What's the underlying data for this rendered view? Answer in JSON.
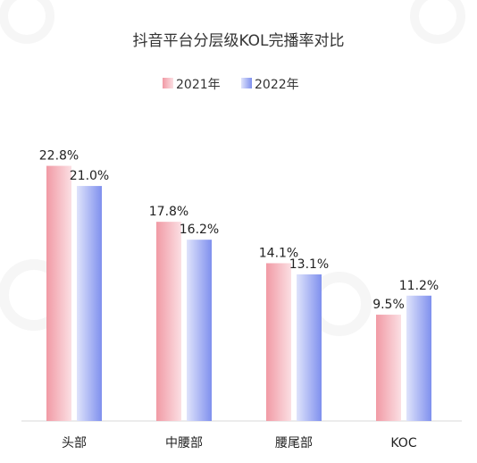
{
  "chart_data": {
    "type": "bar",
    "title": "抖音平台分层级KOL完播率对比",
    "categories": [
      "头部",
      "中腰部",
      "腰尾部",
      "KOC"
    ],
    "series": [
      {
        "name": "2021年",
        "values": [
          22.8,
          17.8,
          14.1,
          9.5
        ],
        "labels": [
          "22.8%",
          "17.8%",
          "14.1%",
          "9.5%"
        ],
        "color": "#f4a6ae"
      },
      {
        "name": "2022年",
        "values": [
          21.0,
          16.2,
          13.1,
          11.2
        ],
        "labels": [
          "21.0%",
          "16.2%",
          "13.1%",
          "11.2%"
        ],
        "color": "#8f9ef0"
      }
    ],
    "ylim": [
      0,
      25
    ],
    "xlabel": "",
    "ylabel": "",
    "grid": false,
    "legend": "top-center"
  }
}
